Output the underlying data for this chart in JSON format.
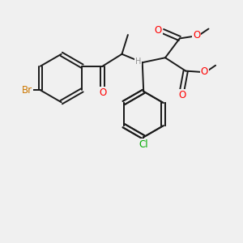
{
  "bg_color": "#f0f0f0",
  "bond_color": "#1a1a1a",
  "bond_width": 1.4,
  "atom_colors": {
    "Br": "#cc7700",
    "O": "#ff0000",
    "Cl": "#00aa00",
    "H": "#909090",
    "C": "#1a1a1a"
  },
  "font_size_atom": 8.5,
  "font_size_small": 7.0,
  "font_size_methyl": 7.5
}
